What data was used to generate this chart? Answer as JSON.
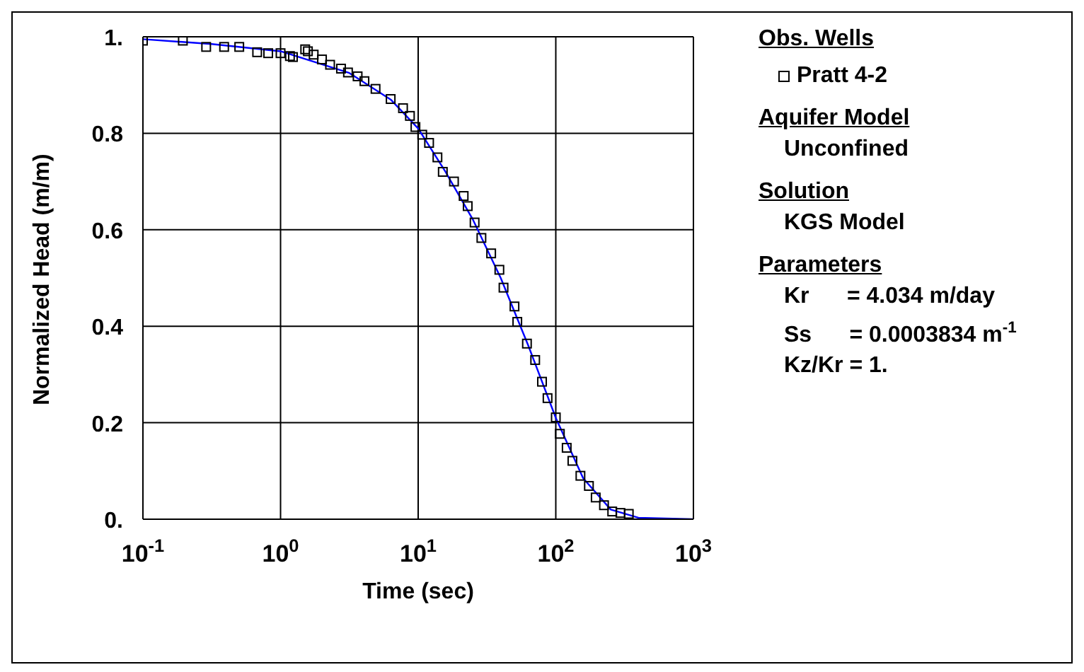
{
  "chart_data": {
    "type": "scatter",
    "xlabel": "Time (sec)",
    "ylabel": "Normalized Head (m/m)",
    "legend_title": "Obs. Wells",
    "legend": "right",
    "log": "x",
    "grid": true,
    "marker": "square",
    "xlim": [
      0.1,
      1000
    ],
    "ylim": [
      0,
      1
    ],
    "xticks": [
      {
        "value": 0.1,
        "label": "10$^{-1}$"
      },
      {
        "value": 1,
        "label": "10$^{0}$"
      },
      {
        "value": 10,
        "label": "10$^{1}$"
      },
      {
        "value": 100,
        "label": "10$^{2}$"
      },
      {
        "value": 1000,
        "label": "10$^{3}$"
      }
    ],
    "yticks": [
      {
        "value": 0,
        "label": "0."
      },
      {
        "value": 0.2,
        "label": "0.2"
      },
      {
        "value": 0.4,
        "label": "0.4"
      },
      {
        "value": 0.6,
        "label": "0.6"
      },
      {
        "value": 0.8,
        "label": "0.8"
      },
      {
        "value": 1,
        "label": "1."
      }
    ],
    "series": [
      {
        "name": "Pratt 4-2",
        "type": "scatter",
        "color": "#000000",
        "x": [
          0.1,
          0.195,
          0.288,
          0.389,
          0.501,
          0.676,
          0.813,
          1.0,
          1.17,
          1.23,
          1.51,
          1.58,
          1.74,
          2.0,
          2.29,
          2.75,
          3.09,
          3.63,
          4.07,
          4.9,
          6.31,
          7.76,
          8.71,
          9.55,
          10.7,
          12.0,
          13.8,
          15.1,
          18.2,
          21.4,
          22.9,
          25.7,
          28.8,
          33.9,
          38.9,
          41.7,
          50.1,
          52.5,
          61.7,
          70.8,
          79.4,
          87.1,
          100,
          107,
          120,
          132,
          151,
          174,
          195,
          224,
          257,
          295,
          339
        ],
        "values": [
          0.992,
          0.992,
          0.979,
          0.979,
          0.979,
          0.968,
          0.966,
          0.966,
          0.96,
          0.958,
          0.974,
          0.97,
          0.963,
          0.953,
          0.942,
          0.934,
          0.926,
          0.918,
          0.908,
          0.892,
          0.871,
          0.852,
          0.836,
          0.813,
          0.797,
          0.78,
          0.75,
          0.72,
          0.7,
          0.67,
          0.649,
          0.615,
          0.583,
          0.551,
          0.517,
          0.48,
          0.441,
          0.409,
          0.364,
          0.33,
          0.285,
          0.251,
          0.211,
          0.177,
          0.148,
          0.121,
          0.09,
          0.069,
          0.045,
          0.029,
          0.016,
          0.013,
          0.011
        ]
      },
      {
        "type": "line",
        "marker": "none",
        "color": "#0000ff",
        "x": [
          0.1,
          0.316,
          1,
          3.16,
          6.31,
          10,
          15.8,
          25.1,
          39.8,
          63.1,
          100,
          158,
          251,
          398,
          1000
        ],
        "values": [
          0.995,
          0.985,
          0.97,
          0.925,
          0.87,
          0.81,
          0.72,
          0.62,
          0.5,
          0.36,
          0.21,
          0.085,
          0.02,
          0.003,
          0
        ]
      }
    ],
    "annotations": [
      "Aquifer Model",
      "Unconfined",
      "Solution",
      "KGS Model",
      "Parameters",
      "Kr      = 4.034 m/day",
      "Ss      = 0.0003834 m$^{-1}$",
      "Kz/Kr = 1."
    ]
  }
}
